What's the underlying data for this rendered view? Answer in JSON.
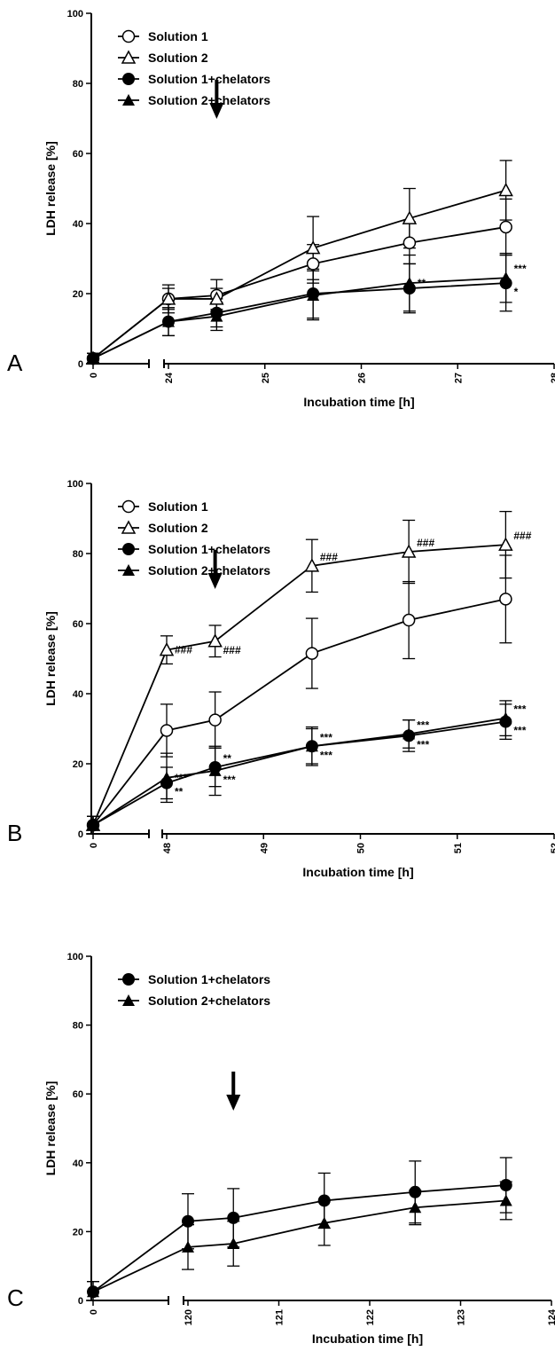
{
  "chart_data": [
    {
      "type": "line",
      "panel": "A",
      "xlabel": "Incubation time [h]",
      "ylabel": "LDH release [%]",
      "ylim": [
        0,
        100
      ],
      "yticks": [
        "0",
        "20",
        "40",
        "60",
        "80",
        "100"
      ],
      "xbreak": {
        "before": [
          0
        ],
        "after": [
          24,
          28
        ]
      },
      "xticks": [
        "0",
        "24",
        "25",
        "26",
        "27",
        "28"
      ],
      "legend": [
        "Solution 1",
        "Solution 2",
        "Solution 1+chelators",
        "Solution 2+chelators"
      ],
      "series": [
        {
          "name": "Solution 1",
          "marker": "open-circle",
          "x": [
            0,
            24,
            24.5,
            25.5,
            26.5,
            27.5
          ],
          "y": [
            1.5,
            18.5,
            19.5,
            28.5,
            34.5,
            39
          ],
          "err": [
            1.5,
            4,
            4.5,
            5.5,
            6,
            8
          ]
        },
        {
          "name": "Solution 2",
          "marker": "open-triangle",
          "x": [
            0,
            24,
            24.5,
            25.5,
            26.5,
            27.5
          ],
          "y": [
            1.5,
            18.5,
            18.5,
            33,
            41.5,
            49.5
          ],
          "err": [
            1.5,
            3,
            3,
            9,
            8.5,
            8.5
          ]
        },
        {
          "name": "Solution 1+chelators",
          "marker": "filled-circle",
          "x": [
            0,
            24,
            24.5,
            25.5,
            26.5,
            27.5
          ],
          "y": [
            1.5,
            12,
            14.5,
            20,
            21.5,
            23
          ],
          "err": [
            1.5,
            4,
            4,
            7,
            7,
            8
          ]
        },
        {
          "name": "Solution 2+chelators",
          "marker": "filled-triangle",
          "x": [
            0,
            24,
            24.5,
            25.5,
            26.5,
            27.5
          ],
          "y": [
            1.5,
            12,
            13.5,
            19.5,
            23,
            24.5
          ],
          "err": [
            1.5,
            4,
            4,
            7,
            8,
            7
          ]
        }
      ],
      "annotations": [
        {
          "text": "**",
          "x": 26.5,
          "y": 23,
          "side": "right"
        },
        {
          "text": "***",
          "x": 27.5,
          "y": 24.5,
          "side": "right-up"
        },
        {
          "text": "*",
          "x": 27.5,
          "y": 23,
          "side": "right-down"
        }
      ],
      "arrow_x": 24.5
    },
    {
      "type": "line",
      "panel": "B",
      "xlabel": "Incubation time [h]",
      "ylabel": "LDH release [%]",
      "ylim": [
        0,
        100
      ],
      "yticks": [
        "0",
        "20",
        "40",
        "60",
        "80",
        "100"
      ],
      "xbreak": {
        "before": [
          0
        ],
        "after": [
          48,
          52
        ]
      },
      "xticks": [
        "0",
        "48",
        "49",
        "50",
        "51",
        "52"
      ],
      "legend": [
        "Solution 1",
        "Solution 2",
        "Solution 1+chelators",
        "Solution 2+chelators"
      ],
      "series": [
        {
          "name": "Solution 1",
          "marker": "open-circle",
          "x": [
            0,
            48,
            48.5,
            49.5,
            50.5,
            51.5
          ],
          "y": [
            2.5,
            29.5,
            32.5,
            51.5,
            61,
            67
          ],
          "err": [
            2.5,
            7.5,
            8,
            10,
            11,
            12.5
          ]
        },
        {
          "name": "Solution 2",
          "marker": "open-triangle",
          "x": [
            0,
            48,
            48.5,
            49.5,
            50.5,
            51.5
          ],
          "y": [
            2.5,
            52.5,
            55,
            76.5,
            80.5,
            82.5
          ],
          "err": [
            2.5,
            4,
            4.5,
            7.5,
            9,
            9.5
          ]
        },
        {
          "name": "Solution 1+chelators",
          "marker": "filled-circle",
          "x": [
            0,
            48,
            48.5,
            49.5,
            50.5,
            51.5
          ],
          "y": [
            2.5,
            14.5,
            19,
            25,
            28,
            32
          ],
          "err": [
            2.5,
            4.5,
            5.5,
            5.5,
            4.5,
            5
          ]
        },
        {
          "name": "Solution 2+chelators",
          "marker": "filled-triangle",
          "x": [
            0,
            48,
            48.5,
            49.5,
            50.5,
            51.5
          ],
          "y": [
            2.5,
            16,
            18,
            25,
            28.5,
            33
          ],
          "err": [
            2.5,
            7,
            7,
            5,
            4,
            5
          ]
        }
      ],
      "annotations": [
        {
          "text": "###",
          "x": 48,
          "y": 52.5,
          "side": "right"
        },
        {
          "text": "###",
          "x": 48.5,
          "y": 55,
          "side": "right-down"
        },
        {
          "text": "###",
          "x": 49.5,
          "y": 76.5,
          "side": "right-up"
        },
        {
          "text": "###",
          "x": 50.5,
          "y": 80.5,
          "side": "right-up"
        },
        {
          "text": "###",
          "x": 51.5,
          "y": 82.5,
          "side": "right-up"
        },
        {
          "text": "***",
          "x": 48,
          "y": 16,
          "side": "right"
        },
        {
          "text": "**",
          "x": 48,
          "y": 14.5,
          "side": "right-down"
        },
        {
          "text": "**",
          "x": 48.5,
          "y": 19,
          "side": "right-up"
        },
        {
          "text": "***",
          "x": 48.5,
          "y": 18,
          "side": "right-down"
        },
        {
          "text": "***",
          "x": 49.5,
          "y": 25,
          "side": "right-up"
        },
        {
          "text": "***",
          "x": 49.5,
          "y": 25,
          "side": "right-down"
        },
        {
          "text": "***",
          "x": 50.5,
          "y": 28.5,
          "side": "right-up"
        },
        {
          "text": "***",
          "x": 50.5,
          "y": 28,
          "side": "right-down"
        },
        {
          "text": "***",
          "x": 51.5,
          "y": 33,
          "side": "right-up"
        },
        {
          "text": "***",
          "x": 51.5,
          "y": 32,
          "side": "right-down"
        }
      ],
      "arrow_x": 48.5
    },
    {
      "type": "line",
      "panel": "C",
      "xlabel": "Incubation time [h]",
      "ylabel": "LDH release [%]",
      "ylim": [
        0,
        100
      ],
      "yticks": [
        "0",
        "20",
        "40",
        "60",
        "80",
        "100"
      ],
      "xbreak": {
        "before": [
          0
        ],
        "after": [
          120,
          124
        ]
      },
      "xticks": [
        "0",
        "120",
        "121",
        "122",
        "123",
        "124"
      ],
      "legend": [
        "Solution 1+chelators",
        "Solution 2+chelators"
      ],
      "series": [
        {
          "name": "Solution 1+chelators",
          "marker": "filled-circle",
          "x": [
            0,
            120,
            120.5,
            121.5,
            122.5,
            123.5
          ],
          "y": [
            2.5,
            23,
            24,
            29,
            31.5,
            33.5
          ],
          "err": [
            3,
            8,
            8.5,
            8,
            9,
            8
          ]
        },
        {
          "name": "Solution 2+chelators",
          "marker": "filled-triangle",
          "x": [
            0,
            120,
            120.5,
            121.5,
            122.5,
            123.5
          ],
          "y": [
            2.5,
            15.5,
            16.5,
            22.5,
            27,
            29
          ],
          "err": [
            3,
            6.5,
            6.5,
            6.5,
            5,
            5.5
          ]
        }
      ],
      "annotations": [],
      "arrow_x": 120.5
    }
  ]
}
